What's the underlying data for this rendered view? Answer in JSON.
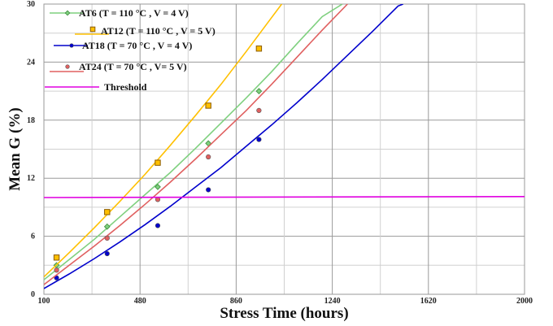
{
  "chart_data": {
    "type": "line",
    "xlabel": "Stress Time (hours)",
    "ylabel": "Mean G (%)",
    "xlim": [
      100,
      2000
    ],
    "ylim": [
      0,
      30
    ],
    "xticks": [
      100,
      480,
      860,
      1240,
      1620,
      2000
    ],
    "yticks": [
      0,
      6,
      12,
      18,
      24,
      30
    ],
    "xtick_labels": [
      "100",
      "480",
      "860",
      "1240",
      "1620",
      "2000"
    ],
    "ytick_labels": [
      "0",
      "6",
      "12",
      "18",
      "24",
      "30"
    ],
    "grid": true,
    "legend_position": "top-left",
    "series": [
      {
        "name": "AT6 (T = 110 °C , V = 4 V)",
        "color": "#7fd07f",
        "marker": "diamond",
        "points": [
          [
            150,
            3.0
          ],
          [
            350,
            7.0
          ],
          [
            550,
            11.1
          ],
          [
            750,
            15.6
          ],
          [
            950,
            21.0
          ]
        ],
        "fit": [
          [
            100,
            1.5
          ],
          [
            200,
            3.6
          ],
          [
            300,
            5.7
          ],
          [
            400,
            8.0
          ],
          [
            500,
            10.3
          ],
          [
            600,
            12.6
          ],
          [
            700,
            15.1
          ],
          [
            800,
            17.7
          ],
          [
            900,
            20.3
          ],
          [
            1000,
            23.0
          ],
          [
            1100,
            25.9
          ],
          [
            1200,
            28.7
          ],
          [
            1280,
            30.0
          ]
        ]
      },
      {
        "name": "AT12 (T = 110 °C , V = 5 V)",
        "color": "#ffc000",
        "marker": "square",
        "points": [
          [
            150,
            3.8
          ],
          [
            350,
            8.5
          ],
          [
            550,
            13.6
          ],
          [
            750,
            19.5
          ],
          [
            950,
            25.4
          ]
        ],
        "fit": [
          [
            100,
            1.8
          ],
          [
            200,
            4.3
          ],
          [
            300,
            6.9
          ],
          [
            400,
            9.6
          ],
          [
            500,
            12.4
          ],
          [
            600,
            15.4
          ],
          [
            700,
            18.5
          ],
          [
            800,
            21.7
          ],
          [
            900,
            25.1
          ],
          [
            1000,
            28.6
          ],
          [
            1040,
            30.0
          ]
        ]
      },
      {
        "name": "AT18 (T = 70 °C , V = 4 V)",
        "color": "#0000cc",
        "marker": "circle",
        "points": [
          [
            150,
            1.7
          ],
          [
            350,
            4.2
          ],
          [
            550,
            7.1
          ],
          [
            750,
            10.8
          ],
          [
            950,
            16.0
          ]
        ],
        "fit": [
          [
            100,
            0.6
          ],
          [
            200,
            2.1
          ],
          [
            300,
            3.7
          ],
          [
            400,
            5.4
          ],
          [
            500,
            7.2
          ],
          [
            600,
            9.1
          ],
          [
            700,
            11.1
          ],
          [
            800,
            13.1
          ],
          [
            900,
            15.3
          ],
          [
            1000,
            17.5
          ],
          [
            1100,
            19.8
          ],
          [
            1200,
            22.2
          ],
          [
            1300,
            24.7
          ],
          [
            1400,
            27.2
          ],
          [
            1500,
            29.8
          ],
          [
            1520,
            30.0
          ]
        ]
      },
      {
        "name": "AT24 (T = 70 °C , V= 5 V)",
        "color": "#e06060",
        "marker": "circle",
        "points": [
          [
            150,
            2.5
          ],
          [
            350,
            5.8
          ],
          [
            550,
            9.8
          ],
          [
            750,
            14.2
          ],
          [
            950,
            19.0
          ]
        ],
        "fit": [
          [
            100,
            1.0
          ],
          [
            200,
            3.0
          ],
          [
            300,
            5.0
          ],
          [
            400,
            7.1
          ],
          [
            500,
            9.3
          ],
          [
            600,
            11.6
          ],
          [
            700,
            14.0
          ],
          [
            800,
            16.5
          ],
          [
            900,
            19.0
          ],
          [
            1000,
            21.7
          ],
          [
            1100,
            24.5
          ],
          [
            1200,
            27.3
          ],
          [
            1300,
            30.0
          ]
        ]
      },
      {
        "name": "Threshold",
        "color": "#e000e0",
        "marker": "none",
        "points": [],
        "fit": [
          [
            100,
            10.0
          ],
          [
            2000,
            10.1
          ]
        ]
      }
    ]
  }
}
